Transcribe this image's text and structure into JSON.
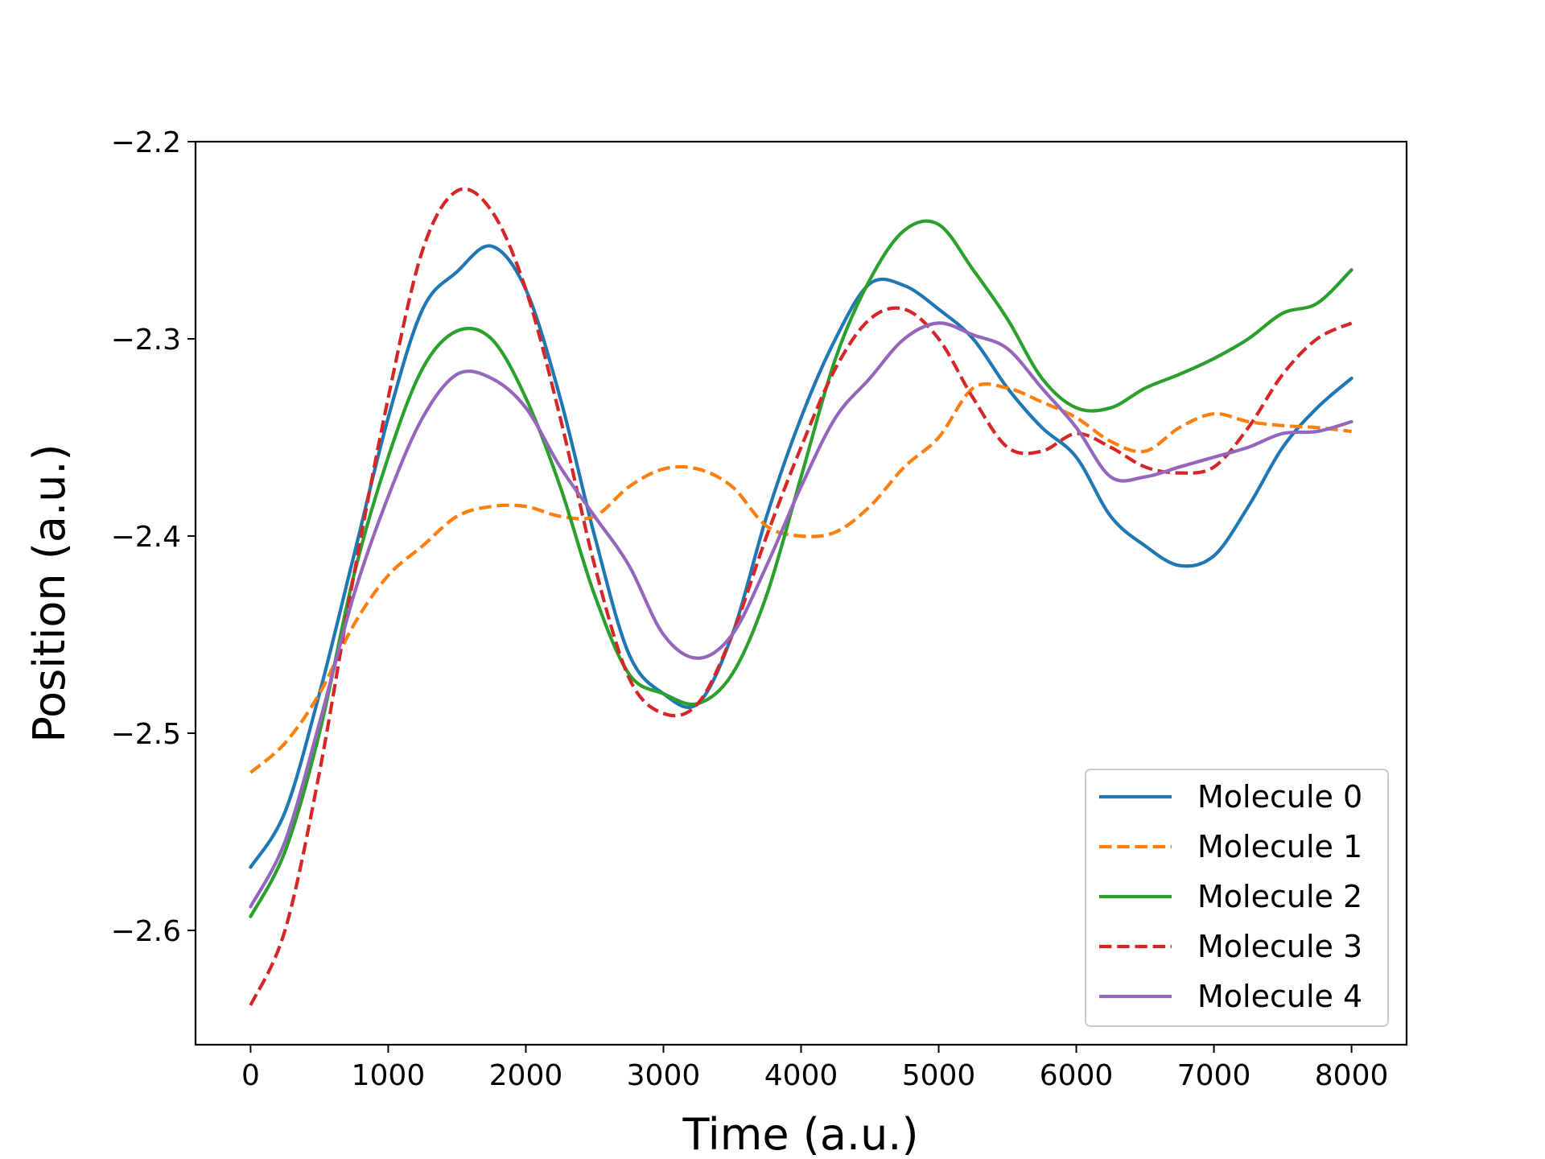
{
  "chart_data": {
    "type": "line",
    "title": "",
    "xlabel": "Time (a.u.)",
    "ylabel": "Position (a.u.)",
    "xlim": [
      -400,
      8400
    ],
    "ylim": [
      -2.658,
      -2.2
    ],
    "x_ticks": [
      0,
      1000,
      2000,
      3000,
      4000,
      5000,
      6000,
      7000,
      8000
    ],
    "x_tick_labels": [
      "0",
      "1000",
      "2000",
      "3000",
      "4000",
      "5000",
      "6000",
      "7000",
      "8000"
    ],
    "y_ticks": [
      -2.6,
      -2.5,
      -2.4,
      -2.3,
      -2.2
    ],
    "y_tick_labels": [
      "−2.6",
      "−2.5",
      "−2.4",
      "−2.3",
      "−2.2"
    ],
    "grid": false,
    "legend_position": "lower-right",
    "x": [
      0,
      250,
      500,
      750,
      1000,
      1250,
      1500,
      1750,
      2000,
      2250,
      2500,
      2750,
      3000,
      3250,
      3500,
      3750,
      4000,
      4250,
      4500,
      4750,
      5000,
      5250,
      5500,
      5750,
      6000,
      6250,
      6500,
      6750,
      7000,
      7250,
      7500,
      7750,
      8000
    ],
    "series": [
      {
        "name": "Molecule 0",
        "color": "#1f77b4",
        "dash": "solid",
        "values": [
          -2.568,
          -2.54,
          -2.48,
          -2.41,
          -2.34,
          -2.285,
          -2.266,
          -2.253,
          -2.275,
          -2.33,
          -2.4,
          -2.46,
          -2.48,
          -2.485,
          -2.45,
          -2.39,
          -2.34,
          -2.3,
          -2.272,
          -2.273,
          -2.285,
          -2.3,
          -2.325,
          -2.345,
          -2.36,
          -2.39,
          -2.405,
          -2.415,
          -2.41,
          -2.385,
          -2.355,
          -2.335,
          -2.32
        ]
      },
      {
        "name": "Molecule 1",
        "color": "#ff7f0e",
        "dash": "dashed",
        "values": [
          -2.52,
          -2.505,
          -2.48,
          -2.445,
          -2.42,
          -2.405,
          -2.39,
          -2.385,
          -2.385,
          -2.39,
          -2.39,
          -2.375,
          -2.366,
          -2.366,
          -2.375,
          -2.395,
          -2.4,
          -2.398,
          -2.385,
          -2.365,
          -2.35,
          -2.325,
          -2.325,
          -2.332,
          -2.34,
          -2.352,
          -2.357,
          -2.345,
          -2.338,
          -2.342,
          -2.344,
          -2.345,
          -2.347
        ]
      },
      {
        "name": "Molecule 2",
        "color": "#2ca02c",
        "dash": "solid",
        "values": [
          -2.593,
          -2.56,
          -2.5,
          -2.42,
          -2.36,
          -2.315,
          -2.296,
          -2.3,
          -2.33,
          -2.375,
          -2.43,
          -2.47,
          -2.48,
          -2.485,
          -2.47,
          -2.43,
          -2.37,
          -2.31,
          -2.27,
          -2.245,
          -2.242,
          -2.265,
          -2.29,
          -2.32,
          -2.335,
          -2.335,
          -2.325,
          -2.318,
          -2.31,
          -2.3,
          -2.287,
          -2.282,
          -2.265
        ]
      },
      {
        "name": "Molecule 3",
        "color": "#d62728",
        "dash": "dashed",
        "values": [
          -2.638,
          -2.6,
          -2.52,
          -2.42,
          -2.33,
          -2.255,
          -2.225,
          -2.235,
          -2.275,
          -2.34,
          -2.415,
          -2.472,
          -2.49,
          -2.485,
          -2.45,
          -2.4,
          -2.355,
          -2.315,
          -2.29,
          -2.285,
          -2.3,
          -2.33,
          -2.355,
          -2.357,
          -2.348,
          -2.355,
          -2.365,
          -2.368,
          -2.365,
          -2.345,
          -2.318,
          -2.3,
          -2.292
        ]
      },
      {
        "name": "Molecule 4",
        "color": "#9467bd",
        "dash": "solid",
        "values": [
          -2.588,
          -2.555,
          -2.495,
          -2.43,
          -2.38,
          -2.34,
          -2.318,
          -2.32,
          -2.335,
          -2.365,
          -2.39,
          -2.415,
          -2.45,
          -2.462,
          -2.45,
          -2.415,
          -2.375,
          -2.34,
          -2.32,
          -2.3,
          -2.292,
          -2.298,
          -2.305,
          -2.325,
          -2.345,
          -2.37,
          -2.37,
          -2.365,
          -2.36,
          -2.355,
          -2.348,
          -2.347,
          -2.342
        ]
      }
    ]
  }
}
